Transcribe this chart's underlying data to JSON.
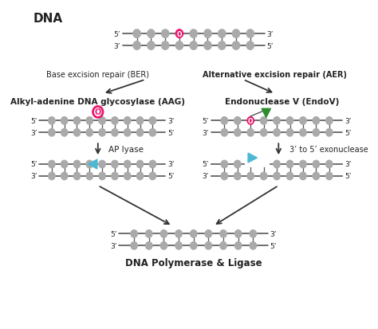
{
  "title": "DNA",
  "bg_color": "#ffffff",
  "nucleotide_color": "#aaaaaa",
  "backbone_color": "#555555",
  "pink_color": "#e8196e",
  "green_color": "#2e8b2e",
  "blue_color": "#4db8d4",
  "text_color": "#222222",
  "label_BER": "Base excision repair (BER)",
  "label_AER": "Alternative excision repair (AER)",
  "label_AAG": "Alkyl-adenine DNA glycosylase (AAG)",
  "label_EndoV": "Endonuclease V (EndoV)",
  "label_APlyase": "AP lyase",
  "label_exonuclease": "3’ to 5’ exonuclease",
  "label_final": "DNA Polymerase & Ligase"
}
